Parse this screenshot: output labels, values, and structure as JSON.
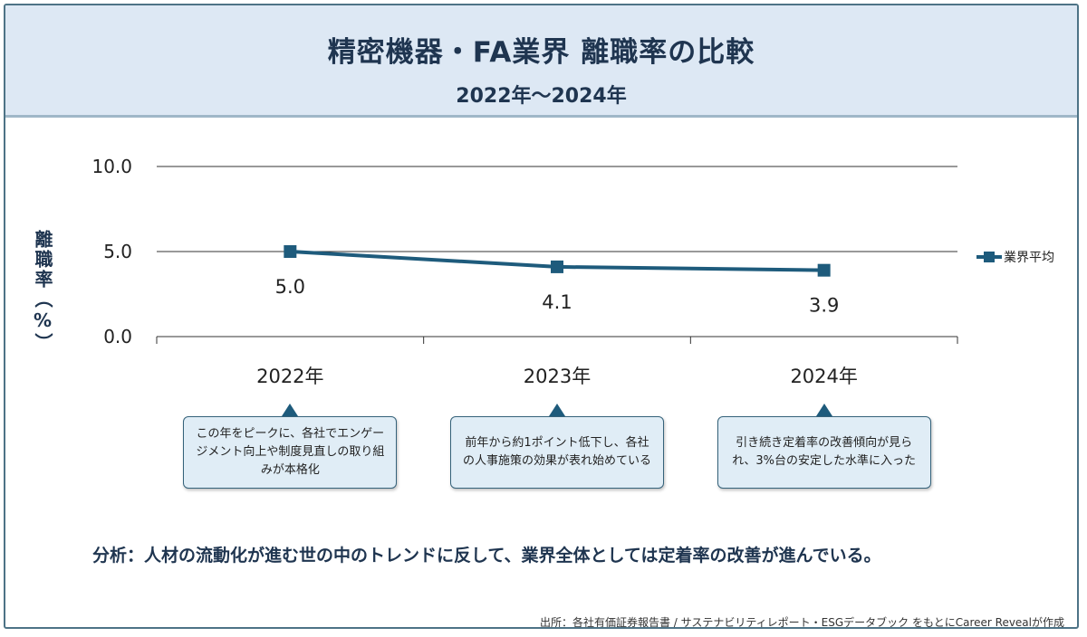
{
  "header": {
    "title": "精密機器・FA業界 離職率の比較",
    "subtitle": "2022年〜2024年"
  },
  "colors": {
    "header_bg": "#dde8f4",
    "series_line": "#1e5b7c",
    "callout_bg": "#e0edf6",
    "text_dark": "#1f3550"
  },
  "chart_data": {
    "type": "line",
    "categories": [
      "2022年",
      "2023年",
      "2024年"
    ],
    "series": [
      {
        "name": "業界平均",
        "values": [
          5.0,
          4.1,
          3.9
        ]
      }
    ],
    "data_labels": [
      "5.0",
      "4.1",
      "3.9"
    ],
    "ylabel": "離職率（%）",
    "ylim": [
      0,
      10
    ],
    "yticks": [
      "0.0",
      "5.0",
      "10.0"
    ],
    "grid": true,
    "legend": "right"
  },
  "callouts": [
    {
      "year": "2022年",
      "text": "この年をピークに、各社でエンゲージメント向上や制度見直しの取り組みが本格化"
    },
    {
      "year": "2023年",
      "text": "前年から約1ポイント低下し、各社の人事施策の効果が表れ始めている"
    },
    {
      "year": "2024年",
      "text": "引き続き定着率の改善傾向が見られ、3%台の安定した水準に入った"
    }
  ],
  "analysis": "分析：人材の流動化が進む世の中のトレンドに反して、業界全体としては定着率の改善が進んでいる。",
  "source": "出所：各社有価証券報告書 / サステナビリティレポート・ESGデータブック をもとにCareer Revealが作成"
}
